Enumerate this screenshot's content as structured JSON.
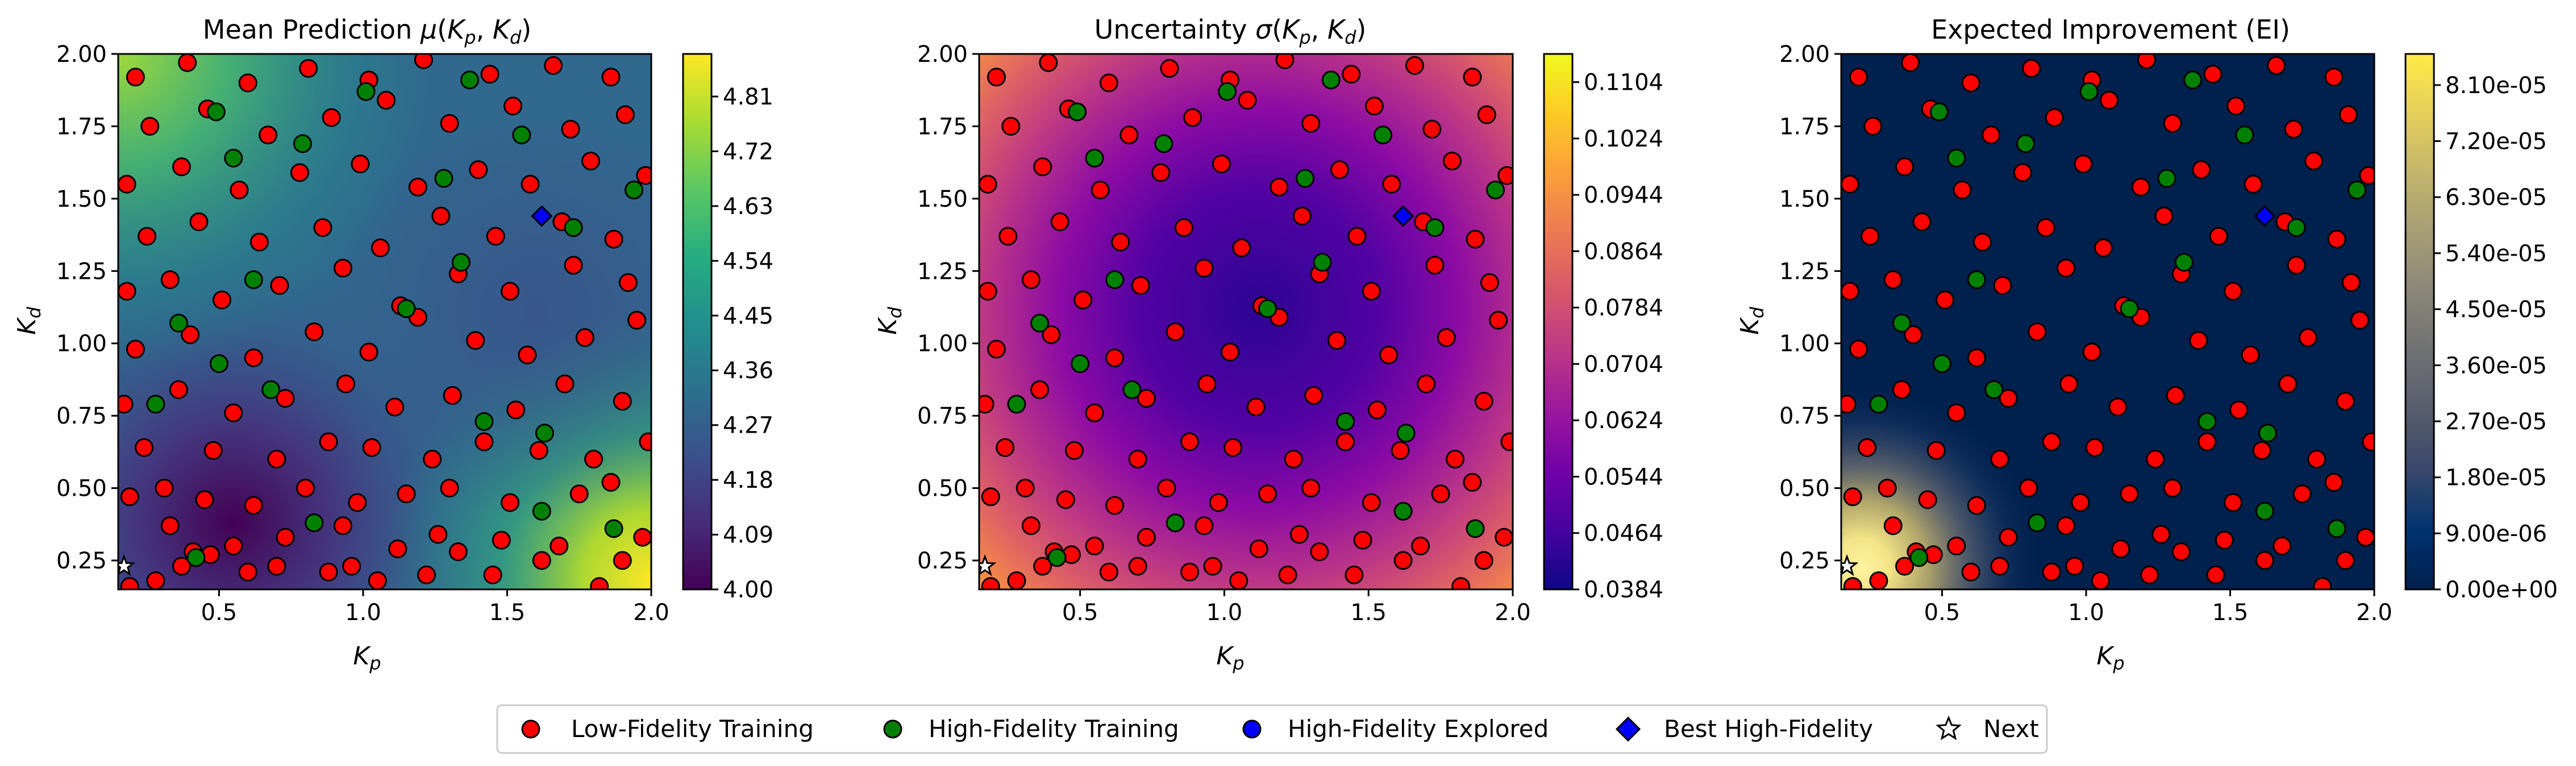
{
  "chart_data": [
    {
      "type": "heatmap",
      "title": "Mean Prediction μ(K_p, K_d)",
      "xlabel": "K_p",
      "ylabel": "K_d",
      "xlim": [
        0.15,
        2.0
      ],
      "ylim": [
        0.15,
        2.0
      ],
      "xticks": [
        "0.5",
        "1.0",
        "1.5",
        "2.0"
      ],
      "yticks": [
        "0.25",
        "0.50",
        "0.75",
        "1.00",
        "1.25",
        "1.50",
        "1.75",
        "2.00"
      ],
      "colormap": "viridis",
      "colorbar": {
        "min": 4.0,
        "max": 4.88,
        "ticks": [
          "4.00",
          "4.09",
          "4.18",
          "4.27",
          "4.36",
          "4.45",
          "4.54",
          "4.63",
          "4.72",
          "4.81"
        ]
      },
      "field_description": "low near (0.5, 0.35); high at bottom-right corner and upper-left corner"
    },
    {
      "type": "heatmap",
      "title": "Uncertainty σ(K_p, K_d)",
      "xlabel": "K_p",
      "ylabel": "K_d",
      "xlim": [
        0.15,
        2.0
      ],
      "ylim": [
        0.15,
        2.0
      ],
      "xticks": [
        "0.5",
        "1.0",
        "1.5",
        "2.0"
      ],
      "yticks": [
        "0.25",
        "0.50",
        "0.75",
        "1.00",
        "1.25",
        "1.50",
        "1.75",
        "2.00"
      ],
      "colormap": "plasma",
      "colorbar": {
        "min": 0.0384,
        "max": 0.1144,
        "ticks": [
          "0.0384",
          "0.0464",
          "0.0544",
          "0.0624",
          "0.0704",
          "0.0784",
          "0.0864",
          "0.0944",
          "0.1024",
          "0.1104"
        ]
      },
      "field_description": "minimum near the center (1.1, 1.1), rising toward all four corners"
    },
    {
      "type": "heatmap",
      "title": "Expected Improvement (EI)",
      "xlabel": "K_p",
      "ylabel": "K_d",
      "xlim": [
        0.15,
        2.0
      ],
      "ylim": [
        0.15,
        2.0
      ],
      "xticks": [
        "0.5",
        "1.0",
        "1.5",
        "2.0"
      ],
      "yticks": [
        "0.25",
        "0.50",
        "0.75",
        "1.00",
        "1.25",
        "1.50",
        "1.75",
        "2.00"
      ],
      "colormap": "cividis",
      "colorbar": {
        "min": 0.0,
        "max": 8.6e-05,
        "ticks": [
          "0.00e+00",
          "9.00e-06",
          "1.80e-05",
          "2.70e-05",
          "3.60e-05",
          "4.50e-05",
          "5.40e-05",
          "6.30e-05",
          "7.20e-05",
          "8.10e-05"
        ]
      },
      "field_description": "near zero everywhere except a peak at the bottom-left corner around (0.25, 0.25)"
    }
  ],
  "points": {
    "low_fidelity": [
      [
        0.19,
        0.16
      ],
      [
        0.28,
        0.18
      ],
      [
        0.41,
        0.28
      ],
      [
        0.55,
        0.3
      ],
      [
        0.33,
        0.37
      ],
      [
        0.37,
        0.23
      ],
      [
        0.47,
        0.27
      ],
      [
        0.6,
        0.21
      ],
      [
        0.7,
        0.23
      ],
      [
        0.88,
        0.21
      ],
      [
        0.96,
        0.23
      ],
      [
        1.05,
        0.18
      ],
      [
        1.22,
        0.2
      ],
      [
        1.33,
        0.28
      ],
      [
        1.45,
        0.2
      ],
      [
        1.62,
        0.25
      ],
      [
        1.82,
        0.16
      ],
      [
        1.9,
        0.25
      ],
      [
        0.73,
        0.33
      ],
      [
        0.93,
        0.37
      ],
      [
        1.12,
        0.29
      ],
      [
        1.26,
        0.34
      ],
      [
        1.48,
        0.32
      ],
      [
        1.68,
        0.3
      ],
      [
        1.97,
        0.33
      ],
      [
        0.19,
        0.47
      ],
      [
        0.31,
        0.5
      ],
      [
        0.45,
        0.46
      ],
      [
        0.62,
        0.44
      ],
      [
        0.8,
        0.5
      ],
      [
        0.98,
        0.45
      ],
      [
        1.15,
        0.48
      ],
      [
        1.3,
        0.5
      ],
      [
        1.51,
        0.45
      ],
      [
        1.75,
        0.48
      ],
      [
        1.86,
        0.52
      ],
      [
        0.24,
        0.64
      ],
      [
        0.48,
        0.63
      ],
      [
        0.7,
        0.6
      ],
      [
        0.88,
        0.66
      ],
      [
        1.03,
        0.64
      ],
      [
        1.24,
        0.6
      ],
      [
        1.42,
        0.66
      ],
      [
        1.61,
        0.63
      ],
      [
        1.8,
        0.6
      ],
      [
        1.99,
        0.66
      ],
      [
        0.17,
        0.79
      ],
      [
        0.36,
        0.84
      ],
      [
        0.55,
        0.76
      ],
      [
        0.73,
        0.81
      ],
      [
        0.94,
        0.86
      ],
      [
        1.11,
        0.78
      ],
      [
        1.31,
        0.82
      ],
      [
        1.53,
        0.77
      ],
      [
        1.7,
        0.86
      ],
      [
        1.9,
        0.8
      ],
      [
        0.21,
        0.98
      ],
      [
        0.4,
        1.03
      ],
      [
        0.62,
        0.95
      ],
      [
        0.83,
        1.04
      ],
      [
        1.02,
        0.97
      ],
      [
        1.19,
        1.09
      ],
      [
        1.39,
        1.01
      ],
      [
        1.57,
        0.96
      ],
      [
        1.77,
        1.02
      ],
      [
        1.95,
        1.08
      ],
      [
        0.18,
        1.18
      ],
      [
        0.33,
        1.22
      ],
      [
        0.51,
        1.15
      ],
      [
        0.71,
        1.2
      ],
      [
        0.93,
        1.26
      ],
      [
        1.13,
        1.13
      ],
      [
        1.33,
        1.24
      ],
      [
        1.51,
        1.18
      ],
      [
        1.73,
        1.27
      ],
      [
        1.92,
        1.21
      ],
      [
        0.25,
        1.37
      ],
      [
        0.43,
        1.42
      ],
      [
        0.64,
        1.35
      ],
      [
        0.86,
        1.4
      ],
      [
        1.06,
        1.33
      ],
      [
        1.27,
        1.44
      ],
      [
        1.46,
        1.37
      ],
      [
        1.69,
        1.42
      ],
      [
        1.87,
        1.36
      ],
      [
        0.18,
        1.55
      ],
      [
        0.37,
        1.61
      ],
      [
        0.57,
        1.53
      ],
      [
        0.78,
        1.59
      ],
      [
        0.99,
        1.62
      ],
      [
        1.19,
        1.54
      ],
      [
        1.4,
        1.6
      ],
      [
        1.58,
        1.55
      ],
      [
        1.79,
        1.63
      ],
      [
        1.98,
        1.58
      ],
      [
        0.26,
        1.75
      ],
      [
        0.46,
        1.81
      ],
      [
        0.67,
        1.72
      ],
      [
        0.89,
        1.78
      ],
      [
        1.08,
        1.84
      ],
      [
        1.3,
        1.76
      ],
      [
        1.52,
        1.82
      ],
      [
        1.72,
        1.74
      ],
      [
        1.91,
        1.79
      ],
      [
        0.21,
        1.92
      ],
      [
        0.39,
        1.97
      ],
      [
        0.6,
        1.9
      ],
      [
        0.81,
        1.95
      ],
      [
        1.02,
        1.91
      ],
      [
        1.21,
        1.98
      ],
      [
        1.44,
        1.93
      ],
      [
        1.66,
        1.96
      ],
      [
        1.86,
        1.92
      ]
    ],
    "high_fidelity": [
      [
        0.42,
        0.26
      ],
      [
        0.83,
        0.38
      ],
      [
        1.62,
        0.42
      ],
      [
        1.87,
        0.36
      ],
      [
        0.28,
        0.79
      ],
      [
        0.5,
        0.93
      ],
      [
        0.68,
        0.84
      ],
      [
        1.42,
        0.73
      ],
      [
        1.63,
        0.69
      ],
      [
        0.36,
        1.07
      ],
      [
        0.62,
        1.22
      ],
      [
        1.15,
        1.12
      ],
      [
        1.34,
        1.28
      ],
      [
        1.73,
        1.4
      ],
      [
        0.55,
        1.64
      ],
      [
        0.79,
        1.69
      ],
      [
        1.28,
        1.57
      ],
      [
        1.55,
        1.72
      ],
      [
        0.49,
        1.8
      ],
      [
        1.01,
        1.87
      ],
      [
        1.37,
        1.91
      ],
      [
        1.94,
        1.53
      ]
    ],
    "best_high_fidelity": [
      [
        1.62,
        1.44
      ]
    ],
    "next": [
      [
        0.17,
        0.23
      ]
    ]
  },
  "legend": {
    "low_fidelity": "Low-Fidelity Training",
    "high_fidelity": "High-Fidelity Training",
    "explored": "High-Fidelity Explored",
    "best": "Best High-Fidelity",
    "next": "Next"
  },
  "colors": {
    "low_fidelity": "#ff0000",
    "high_fidelity": "#008000",
    "explored": "#0000ff",
    "best": "#0000ff"
  }
}
